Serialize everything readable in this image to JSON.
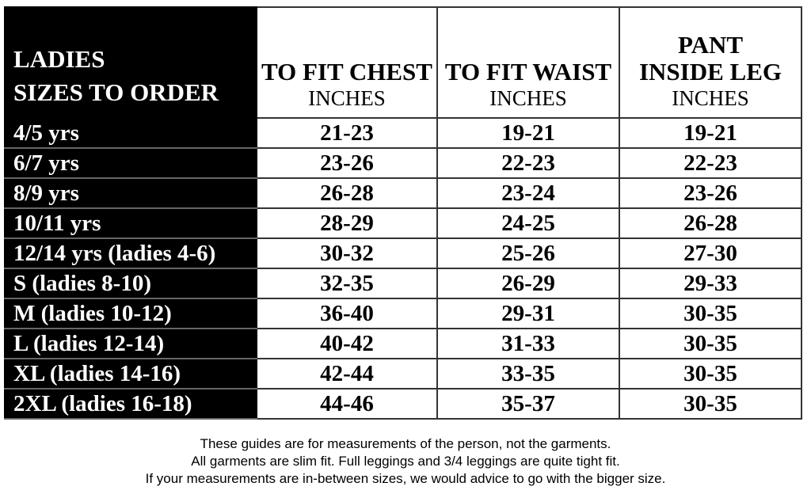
{
  "header": {
    "size_col": [
      "LADIES",
      "SIZES TO ORDER"
    ],
    "columns": [
      {
        "title": [
          "TO FIT CHEST"
        ],
        "unit": "INCHES"
      },
      {
        "title": [
          "TO FIT WAIST"
        ],
        "unit": "INCHES"
      },
      {
        "title": [
          "PANT",
          "INSIDE LEG"
        ],
        "unit": "INCHES"
      }
    ]
  },
  "rows": [
    [
      "4/5 yrs",
      "21-23",
      "19-21",
      "19-21"
    ],
    [
      "6/7 yrs",
      "23-26",
      "22-23",
      "22-23"
    ],
    [
      "8/9 yrs",
      "26-28",
      "23-24",
      "23-26"
    ],
    [
      "10/11 yrs",
      "28-29",
      "24-25",
      "26-28"
    ],
    [
      "12/14 yrs (ladies 4-6)",
      "30-32",
      "25-26",
      "27-30"
    ],
    [
      "S (ladies 8-10)",
      "32-35",
      "26-29",
      "29-33"
    ],
    [
      "M (ladies 10-12)",
      "36-40",
      "29-31",
      "30-35"
    ],
    [
      "L (ladies 12-14)",
      "40-42",
      "31-33",
      "30-35"
    ],
    [
      "XL (ladies 14-16)",
      "42-44",
      "33-35",
      "30-35"
    ],
    [
      "2XL (ladies 16-18)",
      "44-46",
      "35-37",
      "30-35"
    ]
  ],
  "footer": [
    "These guides are for measurements of the person, not the garments.",
    "All garments are slim fit. Full leggings and 3/4 leggings are quite tight fit.",
    "If your measurements are in-between sizes, we would advice to go with the bigger size."
  ]
}
